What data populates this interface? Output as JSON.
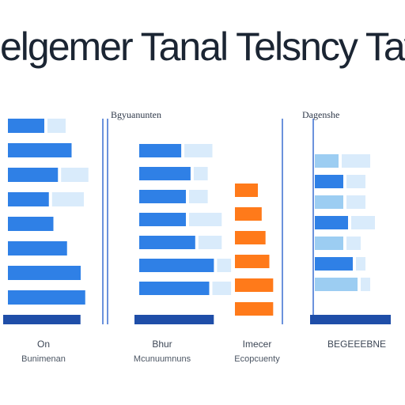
{
  "title": "elgemer Tanal Telsncy Tay",
  "panel_labels": [
    "",
    "Bgyuanunten",
    "",
    "Dagenshe"
  ],
  "captions": [
    {
      "line1": "On",
      "line2": "Bunimenan"
    },
    {
      "line1": "Bhur",
      "line2": "Mcunuumnuns"
    },
    {
      "line1": "Imecer",
      "line2": "Ecopcuenty"
    },
    {
      "line1": "BEGEEEBNE",
      "line2": ""
    }
  ],
  "colors": {
    "blue": "#2f80e6",
    "light_blue": "#9ccdf2",
    "pale_blue": "#d9ebfb",
    "dark_blue": "#1f4ea8",
    "orange": "#ff7a1a",
    "axis": "#3a6fd0"
  },
  "chart_data": [
    {
      "type": "bar",
      "orientation": "horizontal",
      "title": "",
      "series": [
        {
          "values": [
            8,
            14,
            11,
            9,
            10,
            13,
            16,
            17
          ]
        },
        {
          "values": [
            4,
            0,
            6,
            7,
            0,
            0,
            0,
            0
          ]
        }
      ],
      "xlim": [
        0,
        20
      ]
    },
    {
      "type": "bar",
      "orientation": "horizontal",
      "title": "Bgyuanunten",
      "series": [
        {
          "values": [
            9,
            11,
            10,
            10,
            12,
            16,
            15
          ]
        },
        {
          "values": [
            6,
            3,
            4,
            7,
            5,
            3,
            4
          ]
        }
      ],
      "xlim": [
        0,
        20
      ]
    },
    {
      "type": "bar",
      "orientation": "horizontal",
      "title": "",
      "series": [
        {
          "values": [
            6,
            7,
            8,
            9,
            10,
            10
          ]
        }
      ],
      "xlim": [
        0,
        12
      ]
    },
    {
      "type": "bar",
      "orientation": "horizontal",
      "title": "Dagenshe",
      "series": [
        {
          "values": [
            5,
            6,
            6,
            7,
            6,
            8,
            9
          ]
        },
        {
          "values": [
            6,
            4,
            4,
            5,
            3,
            2,
            2
          ]
        }
      ],
      "xlim": [
        0,
        20
      ]
    }
  ]
}
